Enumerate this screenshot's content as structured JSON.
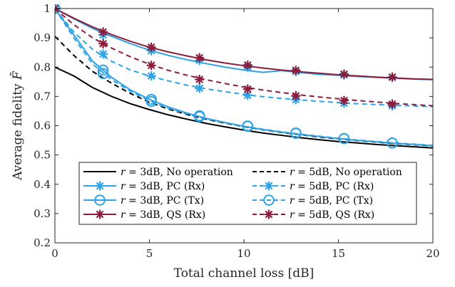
{
  "chart_data": {
    "type": "line",
    "xlabel": "Total channel loss [dB]",
    "ylabel": "Average fidelity",
    "ylabel_symbol": "F̄",
    "xlim": [
      0,
      20
    ],
    "ylim": [
      0.2,
      1.0
    ],
    "xticks": [
      "0",
      "5",
      "10",
      "15",
      "20"
    ],
    "yticks": [
      "0.2",
      "0.3",
      "0.4",
      "0.5",
      "0.6",
      "0.7",
      "0.8",
      "0.9",
      "1"
    ],
    "grid": false,
    "legend_position": "lower-center",
    "colors": {
      "black": "#000000",
      "blue": "#2ea3e6",
      "maroon": "#8c1c3b"
    },
    "series": [
      {
        "name": "r = 3dB, No operation",
        "color": "#000000",
        "style": "solid",
        "marker": "none",
        "x": [
          0,
          1,
          2,
          3,
          4,
          5,
          6,
          7,
          8,
          9,
          10,
          11,
          12,
          13,
          14,
          15,
          16,
          17,
          18,
          19,
          20
        ],
        "y": [
          0.8,
          0.77,
          0.73,
          0.7,
          0.675,
          0.655,
          0.637,
          0.622,
          0.608,
          0.596,
          0.585,
          0.575,
          0.567,
          0.559,
          0.552,
          0.546,
          0.541,
          0.536,
          0.532,
          0.528,
          0.524
        ]
      },
      {
        "name": "r = 5dB, No operation",
        "color": "#000000",
        "style": "dashed",
        "marker": "none",
        "x": [
          0,
          1,
          2,
          3,
          4,
          5,
          6,
          7,
          8,
          9,
          10,
          11,
          12,
          13,
          14,
          15,
          16,
          17,
          18,
          19,
          20
        ],
        "y": [
          0.905,
          0.84,
          0.785,
          0.745,
          0.71,
          0.68,
          0.657,
          0.638,
          0.622,
          0.609,
          0.597,
          0.586,
          0.577,
          0.569,
          0.561,
          0.555,
          0.549,
          0.544,
          0.539,
          0.535,
          0.531
        ]
      },
      {
        "name": "r = 3dB, PC (Rx)",
        "color": "#2ea3e6",
        "style": "solid",
        "marker": "star",
        "x": [
          0,
          1,
          2,
          3,
          4,
          5,
          6,
          7,
          8,
          9,
          10,
          11,
          12,
          13,
          14,
          15,
          16,
          17,
          18,
          19,
          20
        ],
        "y": [
          1.0,
          0.965,
          0.932,
          0.905,
          0.88,
          0.858,
          0.84,
          0.825,
          0.812,
          0.8,
          0.79,
          0.782,
          0.788,
          0.781,
          0.775,
          0.772,
          0.768,
          0.765,
          0.762,
          0.759,
          0.757
        ],
        "marker_x": [
          0,
          2.55,
          5.1,
          7.65,
          10.2,
          12.75,
          15.3,
          17.85
        ],
        "marker_y": [
          1.0,
          0.91,
          0.856,
          0.823,
          0.8,
          0.785,
          0.773,
          0.765
        ]
      },
      {
        "name": "r = 3dB, PC (Tx)",
        "color": "#2ea3e6",
        "style": "solid",
        "marker": "circle",
        "x": [
          0,
          1,
          2,
          3,
          4,
          5,
          6,
          7,
          8,
          9,
          10,
          11,
          12,
          13,
          14,
          15,
          16,
          17,
          18,
          19,
          20
        ],
        "y": [
          1.0,
          0.91,
          0.82,
          0.765,
          0.722,
          0.69,
          0.664,
          0.643,
          0.625,
          0.611,
          0.598,
          0.587,
          0.578,
          0.57,
          0.563,
          0.556,
          0.55,
          0.545,
          0.54,
          0.536,
          0.532
        ],
        "marker_x": [
          0,
          2.55,
          5.1,
          7.65,
          10.2,
          12.75,
          15.3,
          17.85
        ],
        "marker_y": [
          1.0,
          0.79,
          0.69,
          0.634,
          0.599,
          0.575,
          0.556,
          0.541
        ]
      },
      {
        "name": "r = 3dB, QS (Rx)",
        "color": "#8c1c3b",
        "style": "solid",
        "marker": "star",
        "x": [
          0,
          1,
          2,
          3,
          4,
          5,
          6,
          7,
          8,
          9,
          10,
          11,
          12,
          13,
          14,
          15,
          16,
          17,
          18,
          19,
          20
        ],
        "y": [
          1.0,
          0.967,
          0.937,
          0.911,
          0.888,
          0.868,
          0.852,
          0.838,
          0.825,
          0.814,
          0.805,
          0.797,
          0.79,
          0.784,
          0.779,
          0.774,
          0.77,
          0.766,
          0.763,
          0.76,
          0.758
        ],
        "marker_x": [
          0,
          2.55,
          5.1,
          7.65,
          10.2,
          12.75,
          15.3,
          17.85
        ],
        "marker_y": [
          1.0,
          0.92,
          0.868,
          0.832,
          0.807,
          0.789,
          0.776,
          0.766
        ]
      },
      {
        "name": "r = 5dB, PC (Rx)",
        "color": "#2ea3e6",
        "style": "dashed",
        "marker": "star",
        "x": [
          0,
          1,
          2,
          3,
          4,
          5,
          6,
          7,
          8,
          9,
          10,
          11,
          12,
          13,
          14,
          15,
          16,
          17,
          18,
          19,
          20
        ],
        "y": [
          1.0,
          0.92,
          0.86,
          0.82,
          0.79,
          0.77,
          0.753,
          0.738,
          0.726,
          0.716,
          0.707,
          0.699,
          0.693,
          0.688,
          0.683,
          0.679,
          0.675,
          0.672,
          0.67,
          0.667,
          0.665
        ],
        "marker_x": [
          0,
          2.55,
          5.1,
          7.65,
          10.2,
          12.75,
          15.3,
          17.85
        ],
        "marker_y": [
          1.0,
          0.845,
          0.77,
          0.728,
          0.704,
          0.689,
          0.677,
          0.668
        ]
      },
      {
        "name": "r = 5dB, PC (Tx)",
        "color": "#2ea3e6",
        "style": "dashed",
        "marker": "circle",
        "x": [
          0,
          1,
          2,
          3,
          4,
          5,
          6,
          7,
          8,
          9,
          10,
          11,
          12,
          13,
          14,
          15,
          16,
          17,
          18,
          19,
          20
        ],
        "y": [
          1.0,
          0.9,
          0.81,
          0.757,
          0.717,
          0.685,
          0.66,
          0.64,
          0.624,
          0.61,
          0.598,
          0.588,
          0.579,
          0.571,
          0.564,
          0.557,
          0.551,
          0.546,
          0.541,
          0.537,
          0.533
        ],
        "marker_x": [
          0,
          2.55,
          5.1,
          7.65,
          10.2,
          12.75,
          15.3,
          17.85
        ],
        "marker_y": [
          1.0,
          0.778,
          0.683,
          0.631,
          0.598,
          0.574,
          0.556,
          0.541
        ]
      },
      {
        "name": "r = 5dB, QS (Rx)",
        "color": "#8c1c3b",
        "style": "dashed",
        "marker": "star",
        "x": [
          0,
          1,
          2,
          3,
          4,
          5,
          6,
          7,
          8,
          9,
          10,
          11,
          12,
          13,
          14,
          15,
          16,
          17,
          18,
          19,
          20
        ],
        "y": [
          1.0,
          0.945,
          0.9,
          0.865,
          0.835,
          0.81,
          0.789,
          0.772,
          0.757,
          0.744,
          0.732,
          0.722,
          0.713,
          0.705,
          0.698,
          0.692,
          0.686,
          0.681,
          0.676,
          0.672,
          0.668
        ],
        "marker_x": [
          0,
          2.55,
          5.1,
          7.65,
          10.2,
          12.75,
          15.3,
          17.85
        ],
        "marker_y": [
          1.0,
          0.88,
          0.806,
          0.758,
          0.725,
          0.702,
          0.686,
          0.674
        ]
      }
    ]
  }
}
